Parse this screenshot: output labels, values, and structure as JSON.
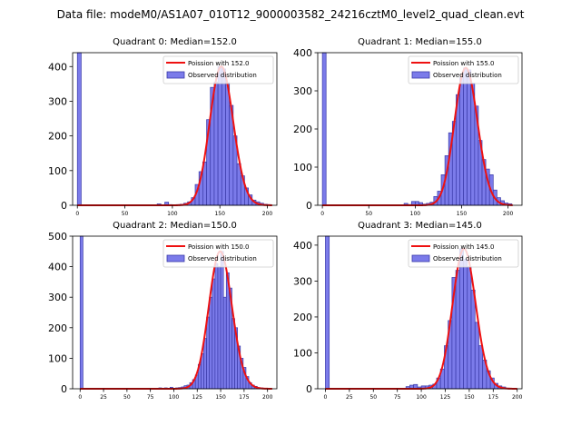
{
  "figure": {
    "suptitle": "Data file: modeM0/AS1A07_010T12_9000003582_24216cztM0_level2_quad_clean.evt"
  },
  "chart_data": [
    {
      "type": "bar",
      "title": "Quadrant 0: Median=152.0",
      "median": 152.0,
      "xlim": [
        -5,
        210
      ],
      "ylim": [
        0,
        440
      ],
      "xticks": [
        0,
        50,
        100,
        150,
        200
      ],
      "yticks": [
        0,
        100,
        200,
        300,
        400
      ],
      "bin_width": 4,
      "bars": [
        {
          "x": 0,
          "y": 440
        },
        {
          "x": 84,
          "y": 4
        },
        {
          "x": 88,
          "y": 1
        },
        {
          "x": 92,
          "y": 9
        },
        {
          "x": 96,
          "y": 2
        },
        {
          "x": 100,
          "y": 1
        },
        {
          "x": 104,
          "y": 2
        },
        {
          "x": 108,
          "y": 3
        },
        {
          "x": 112,
          "y": 6
        },
        {
          "x": 116,
          "y": 10
        },
        {
          "x": 120,
          "y": 22
        },
        {
          "x": 124,
          "y": 60
        },
        {
          "x": 128,
          "y": 97
        },
        {
          "x": 132,
          "y": 125
        },
        {
          "x": 136,
          "y": 247
        },
        {
          "x": 140,
          "y": 340
        },
        {
          "x": 144,
          "y": 355
        },
        {
          "x": 148,
          "y": 400
        },
        {
          "x": 152,
          "y": 393
        },
        {
          "x": 156,
          "y": 353
        },
        {
          "x": 160,
          "y": 288
        },
        {
          "x": 164,
          "y": 200
        },
        {
          "x": 168,
          "y": 120
        },
        {
          "x": 172,
          "y": 85
        },
        {
          "x": 176,
          "y": 50
        },
        {
          "x": 180,
          "y": 30
        },
        {
          "x": 184,
          "y": 15
        },
        {
          "x": 188,
          "y": 10
        },
        {
          "x": 192,
          "y": 6
        },
        {
          "x": 196,
          "y": 3
        },
        {
          "x": 200,
          "y": 2
        }
      ],
      "legend": {
        "placement": "top-right",
        "line_label": "Poission with 152.0",
        "bar_label": "Observed distribution"
      }
    },
    {
      "type": "bar",
      "title": "Quadrant 1: Median=155.0",
      "median": 155.0,
      "xlim": [
        -5,
        215
      ],
      "ylim": [
        0,
        400
      ],
      "xticks": [
        0,
        50,
        100,
        150,
        200
      ],
      "yticks": [
        0,
        100,
        200,
        300,
        400
      ],
      "bin_width": 4,
      "bars": [
        {
          "x": 0,
          "y": 400
        },
        {
          "x": 88,
          "y": 5
        },
        {
          "x": 92,
          "y": 2
        },
        {
          "x": 96,
          "y": 10
        },
        {
          "x": 100,
          "y": 10
        },
        {
          "x": 104,
          "y": 7
        },
        {
          "x": 108,
          "y": 3
        },
        {
          "x": 112,
          "y": 5
        },
        {
          "x": 116,
          "y": 8
        },
        {
          "x": 120,
          "y": 23
        },
        {
          "x": 124,
          "y": 37
        },
        {
          "x": 128,
          "y": 80
        },
        {
          "x": 132,
          "y": 130
        },
        {
          "x": 136,
          "y": 190
        },
        {
          "x": 140,
          "y": 220
        },
        {
          "x": 144,
          "y": 290
        },
        {
          "x": 148,
          "y": 335
        },
        {
          "x": 152,
          "y": 360
        },
        {
          "x": 156,
          "y": 355
        },
        {
          "x": 160,
          "y": 320
        },
        {
          "x": 164,
          "y": 260
        },
        {
          "x": 168,
          "y": 170
        },
        {
          "x": 172,
          "y": 120
        },
        {
          "x": 176,
          "y": 95
        },
        {
          "x": 180,
          "y": 80
        },
        {
          "x": 184,
          "y": 40
        },
        {
          "x": 188,
          "y": 20
        },
        {
          "x": 192,
          "y": 12
        },
        {
          "x": 196,
          "y": 6
        },
        {
          "x": 200,
          "y": 4
        }
      ],
      "legend": {
        "placement": "top-right",
        "line_label": "Poission with 155.0",
        "bar_label": "Observed distribution"
      }
    },
    {
      "type": "bar",
      "title": "Quadrant 2: Median=150.0",
      "median": 150.0,
      "xlim": [
        -8,
        210
      ],
      "ylim": [
        0,
        500
      ],
      "xticks": [
        0,
        25,
        50,
        75,
        100,
        125,
        150,
        175,
        200
      ],
      "yticks": [
        0,
        100,
        200,
        300,
        400,
        500
      ],
      "bin_width": 3,
      "bars": [
        {
          "x": 0,
          "y": 500
        },
        {
          "x": 84,
          "y": 3
        },
        {
          "x": 90,
          "y": 3
        },
        {
          "x": 96,
          "y": 5
        },
        {
          "x": 102,
          "y": 3
        },
        {
          "x": 105,
          "y": 4
        },
        {
          "x": 108,
          "y": 6
        },
        {
          "x": 111,
          "y": 10
        },
        {
          "x": 114,
          "y": 12
        },
        {
          "x": 117,
          "y": 20
        },
        {
          "x": 120,
          "y": 30
        },
        {
          "x": 123,
          "y": 45
        },
        {
          "x": 126,
          "y": 80
        },
        {
          "x": 129,
          "y": 115
        },
        {
          "x": 132,
          "y": 165
        },
        {
          "x": 135,
          "y": 235
        },
        {
          "x": 138,
          "y": 300
        },
        {
          "x": 141,
          "y": 360
        },
        {
          "x": 144,
          "y": 410
        },
        {
          "x": 147,
          "y": 400
        },
        {
          "x": 150,
          "y": 450
        },
        {
          "x": 153,
          "y": 300
        },
        {
          "x": 156,
          "y": 380
        },
        {
          "x": 159,
          "y": 330
        },
        {
          "x": 162,
          "y": 230
        },
        {
          "x": 165,
          "y": 200
        },
        {
          "x": 168,
          "y": 140
        },
        {
          "x": 171,
          "y": 100
        },
        {
          "x": 174,
          "y": 70
        },
        {
          "x": 177,
          "y": 40
        },
        {
          "x": 180,
          "y": 20
        },
        {
          "x": 183,
          "y": 12
        },
        {
          "x": 186,
          "y": 8
        },
        {
          "x": 189,
          "y": 4
        },
        {
          "x": 192,
          "y": 3
        }
      ],
      "legend": {
        "placement": "top-right",
        "line_label": "Poission with 150.0",
        "bar_label": "Observed distribution"
      }
    },
    {
      "type": "bar",
      "title": "Quadrant 3: Median=145.0",
      "median": 145.0,
      "xlim": [
        -8,
        205
      ],
      "ylim": [
        0,
        425
      ],
      "xticks": [
        0,
        25,
        50,
        75,
        100,
        125,
        150,
        175,
        200
      ],
      "yticks": [
        0,
        100,
        200,
        300,
        400
      ],
      "bin_width": 4,
      "bars": [
        {
          "x": 0,
          "y": 425
        },
        {
          "x": 84,
          "y": 6
        },
        {
          "x": 88,
          "y": 10
        },
        {
          "x": 92,
          "y": 12
        },
        {
          "x": 96,
          "y": 5
        },
        {
          "x": 100,
          "y": 8
        },
        {
          "x": 104,
          "y": 8
        },
        {
          "x": 108,
          "y": 10
        },
        {
          "x": 112,
          "y": 13
        },
        {
          "x": 116,
          "y": 30
        },
        {
          "x": 120,
          "y": 55
        },
        {
          "x": 124,
          "y": 120
        },
        {
          "x": 128,
          "y": 190
        },
        {
          "x": 132,
          "y": 310
        },
        {
          "x": 136,
          "y": 330
        },
        {
          "x": 140,
          "y": 390
        },
        {
          "x": 144,
          "y": 360
        },
        {
          "x": 148,
          "y": 340
        },
        {
          "x": 152,
          "y": 275
        },
        {
          "x": 156,
          "y": 185
        },
        {
          "x": 160,
          "y": 120
        },
        {
          "x": 164,
          "y": 80
        },
        {
          "x": 168,
          "y": 50
        },
        {
          "x": 172,
          "y": 30
        },
        {
          "x": 176,
          "y": 15
        },
        {
          "x": 180,
          "y": 8
        },
        {
          "x": 184,
          "y": 5
        },
        {
          "x": 188,
          "y": 2
        }
      ],
      "legend": {
        "placement": "top-right",
        "line_label": "Poission with 145.0",
        "bar_label": "Observed distribution"
      }
    }
  ],
  "colors": {
    "bar_fill": "#7b7bea",
    "bar_edge": "#3a3aa8",
    "poisson_line": "#ee1111"
  }
}
